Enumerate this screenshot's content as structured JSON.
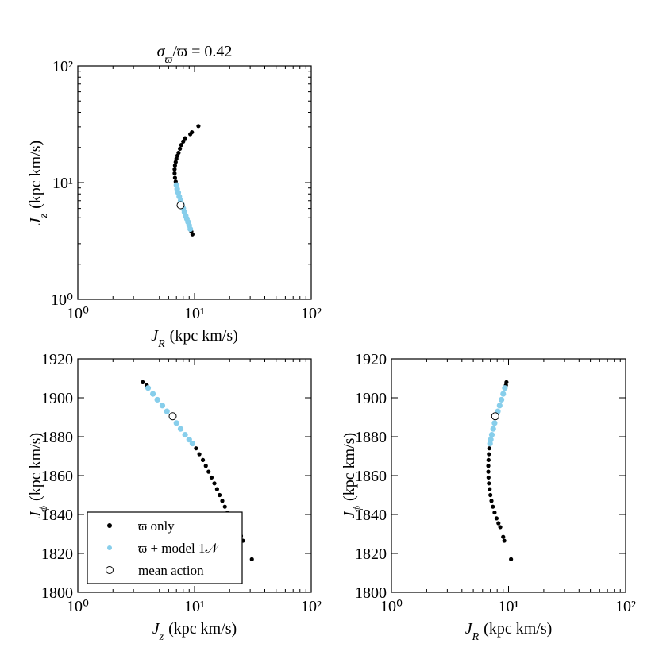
{
  "chart_data": [
    {
      "type": "scatter",
      "title": {
        "symbol": "σ",
        "sub": "ϖ",
        "rest": "/ϖ = 0.42"
      },
      "xlabel": {
        "symbol": "J",
        "sub": "R",
        "unit": "(kpc km/s)"
      },
      "ylabel": {
        "symbol": "J",
        "sub": "z",
        "unit": "(kpc km/s)"
      },
      "xlog": true,
      "ylog": true,
      "xlim": [
        1,
        100
      ],
      "ylim": [
        1,
        100
      ],
      "xticks": [
        {
          "value": 1,
          "label": "10⁰"
        },
        {
          "value": 10,
          "label": "10¹"
        },
        {
          "value": 100,
          "label": "10²"
        }
      ],
      "yticks": [
        {
          "value": 1,
          "label": "10⁰"
        },
        {
          "value": 10,
          "label": "10¹"
        },
        {
          "value": 100,
          "label": "10²"
        }
      ],
      "series": [
        {
          "color": "#000000",
          "marker": "dot",
          "x": [
            9.6,
            9.4,
            6.9,
            6.8,
            6.75,
            6.75,
            6.8,
            6.9,
            7.0,
            7.15,
            7.3,
            7.5,
            7.7,
            8.0,
            8.3,
            9.2,
            9.5,
            10.8
          ],
          "values": [
            3.6,
            3.8,
            10.2,
            11,
            12,
            13,
            14,
            15,
            16,
            17,
            18,
            19.5,
            21,
            22.5,
            24,
            26,
            27,
            30.5
          ]
        },
        {
          "color": "#87ceeb",
          "marker": "dot",
          "x": [
            9.2,
            9.0,
            8.8,
            8.6,
            8.4,
            8.2,
            8.0,
            7.8,
            7.6,
            7.4,
            7.25,
            7.1,
            7.0
          ],
          "values": [
            4.0,
            4.3,
            4.6,
            4.9,
            5.2,
            5.6,
            6.0,
            6.5,
            7.0,
            7.6,
            8.2,
            8.8,
            9.5
          ]
        },
        {
          "color": "#000000",
          "marker": "open",
          "x": [
            7.6
          ],
          "values": [
            6.4
          ]
        }
      ]
    },
    {
      "type": "scatter",
      "xlabel": {
        "symbol": "J",
        "sub": "z",
        "unit": "(kpc km/s)"
      },
      "ylabel": {
        "symbol": "J",
        "sub": "ϕ",
        "unit": "(kpc km/s)"
      },
      "xlog": true,
      "ylog": false,
      "xlim": [
        1,
        100
      ],
      "ylim": [
        1800,
        1920
      ],
      "xticks": [
        {
          "value": 1,
          "label": "10⁰"
        },
        {
          "value": 10,
          "label": "10¹"
        },
        {
          "value": 100,
          "label": "10²"
        }
      ],
      "yticks": [
        1800,
        1820,
        1840,
        1860,
        1880,
        1900,
        1920
      ],
      "legend": "lower left",
      "series": [
        {
          "name": "ϖ only",
          "color": "#000000",
          "marker": "dot",
          "x": [
            3.6,
            3.9,
            10.3,
            11,
            11.8,
            12.5,
            13.2,
            14,
            14.8,
            15.6,
            16.4,
            17.3,
            18.2,
            19.2,
            20.2,
            25,
            26,
            31
          ],
          "values": [
            1908,
            1906.5,
            1874,
            1871,
            1868,
            1865,
            1862,
            1859,
            1856,
            1853,
            1850,
            1847,
            1844,
            1841,
            1838,
            1829,
            1826.5,
            1817
          ]
        },
        {
          "name": "ϖ + model 1𝒩",
          "color": "#87ceeb",
          "marker": "dot",
          "x": [
            4.0,
            4.4,
            4.8,
            5.3,
            5.8,
            6.4,
            7.0,
            7.6,
            8.3,
            9.0,
            9.6
          ],
          "values": [
            1905,
            1902,
            1899,
            1896,
            1893,
            1890,
            1887,
            1884,
            1881,
            1878.5,
            1876.5
          ]
        },
        {
          "name": "mean action",
          "color": "#000000",
          "marker": "open",
          "x": [
            6.5
          ],
          "values": [
            1890.5
          ]
        }
      ]
    },
    {
      "type": "scatter",
      "xlabel": {
        "symbol": "J",
        "sub": "R",
        "unit": "(kpc km/s)"
      },
      "ylabel": {
        "symbol": "J",
        "sub": "ϕ",
        "unit": "(kpc km/s)"
      },
      "xlog": true,
      "ylog": false,
      "xlim": [
        1,
        100
      ],
      "ylim": [
        1800,
        1920
      ],
      "xticks": [
        {
          "value": 1,
          "label": "10⁰"
        },
        {
          "value": 10,
          "label": "10¹"
        },
        {
          "value": 100,
          "label": "10²"
        }
      ],
      "yticks": [
        1800,
        1820,
        1840,
        1860,
        1880,
        1900,
        1920
      ],
      "series": [
        {
          "color": "#000000",
          "marker": "dot",
          "x": [
            9.6,
            9.5,
            6.85,
            6.8,
            6.75,
            6.72,
            6.72,
            6.75,
            6.8,
            6.9,
            7.0,
            7.15,
            7.35,
            7.6,
            7.9,
            8.2,
            8.5,
            9.0,
            9.2,
            10.5
          ],
          "values": [
            1908,
            1906.5,
            1874,
            1871,
            1868,
            1865,
            1862,
            1859,
            1856,
            1853,
            1850,
            1847,
            1844,
            1841,
            1838,
            1835.5,
            1833.5,
            1828.5,
            1826.5,
            1817
          ]
        },
        {
          "color": "#87ceeb",
          "marker": "dot",
          "x": [
            9.3,
            9.0,
            8.7,
            8.4,
            8.1,
            7.8,
            7.6,
            7.4,
            7.2,
            7.05,
            6.95
          ],
          "values": [
            1905,
            1902,
            1899,
            1896,
            1893,
            1890,
            1887,
            1884,
            1881,
            1878.5,
            1876.5
          ]
        },
        {
          "color": "#000000",
          "marker": "open",
          "x": [
            7.7
          ],
          "values": [
            1890.5
          ]
        }
      ]
    }
  ]
}
